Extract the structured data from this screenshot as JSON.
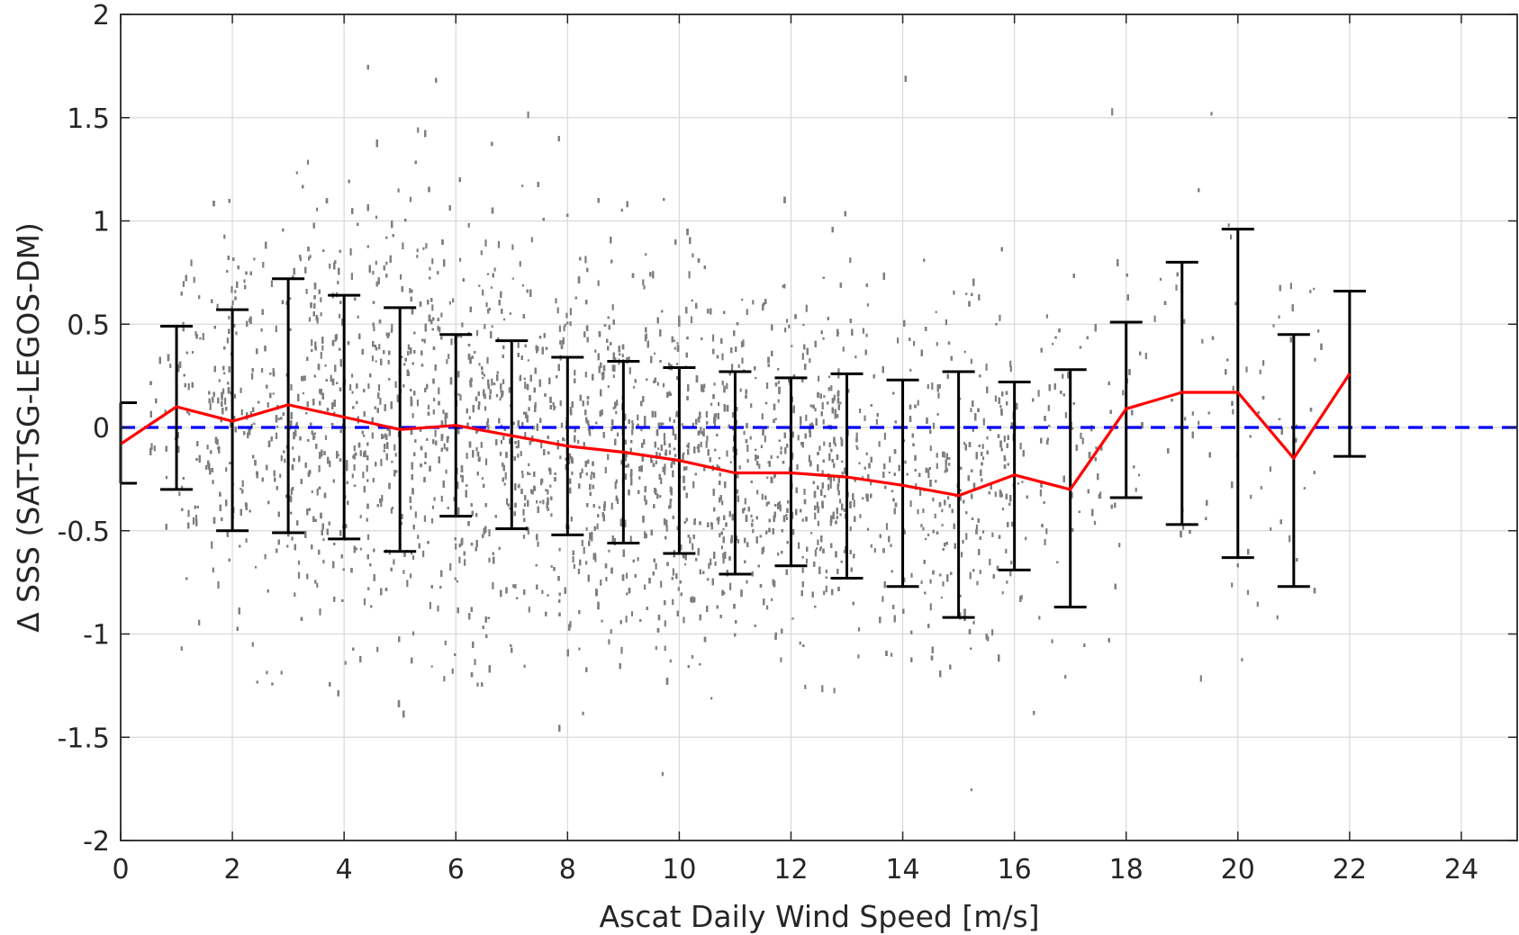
{
  "chart_data": {
    "type": "scatter",
    "title": "",
    "xlabel": "Ascat Daily Wind Speed [m/s]",
    "ylabel": "Δ SSS (SAT-TSG-LEGOS-DM)",
    "xlim": [
      0,
      25
    ],
    "ylim": [
      -2,
      2
    ],
    "xticks": [
      0,
      2,
      4,
      6,
      8,
      10,
      12,
      14,
      16,
      18,
      20,
      22,
      24
    ],
    "yticks": [
      -2,
      -1.5,
      -1,
      -0.5,
      0,
      0.5,
      1,
      1.5,
      2
    ],
    "xtick_labels": [
      "0",
      "2",
      "4",
      "6",
      "8",
      "10",
      "12",
      "14",
      "16",
      "18",
      "20",
      "22",
      "24"
    ],
    "ytick_labels": [
      "-2",
      "-1.5",
      "-1",
      "-0.5",
      "0",
      "0.5",
      "1",
      "1.5",
      "2"
    ],
    "grid": true,
    "colors": {
      "scatter": "#7f7f7f",
      "mean_line": "#ff0000",
      "reference_line": "#0000ff",
      "error_bars": "#000000",
      "grid": "#d9d9d9",
      "axes": "#262626"
    },
    "reference_line": {
      "y": 0,
      "style": "dashed"
    },
    "scatter_cloud": {
      "note_x_range": [
        0,
        21.5
      ],
      "center_by_wind": [
        [
          0.5,
          0.05,
          0.35
        ],
        [
          2,
          0.05,
          0.5
        ],
        [
          4,
          0.05,
          0.55
        ],
        [
          6,
          0.0,
          0.5
        ],
        [
          8,
          -0.1,
          0.45
        ],
        [
          10,
          -0.15,
          0.45
        ],
        [
          12,
          -0.2,
          0.4
        ],
        [
          14,
          -0.25,
          0.4
        ],
        [
          16,
          -0.25,
          0.4
        ],
        [
          18,
          0.05,
          0.5
        ],
        [
          20,
          0.1,
          0.6
        ],
        [
          21.5,
          -0.1,
          0.5
        ]
      ]
    },
    "series": [
      {
        "name": "bin mean",
        "x": [
          0,
          1,
          2,
          3,
          4,
          5,
          6,
          7,
          8,
          9,
          10,
          11,
          12,
          13,
          14,
          15,
          16,
          17,
          18,
          19,
          20,
          21,
          22
        ],
        "y": [
          -0.08,
          0.1,
          0.03,
          0.11,
          0.05,
          -0.01,
          0.01,
          -0.04,
          -0.09,
          -0.12,
          -0.16,
          -0.22,
          -0.22,
          -0.24,
          -0.28,
          -0.33,
          -0.23,
          -0.3,
          0.09,
          0.17,
          0.17,
          -0.15,
          0.26
        ]
      },
      {
        "name": "error bars",
        "x": [
          0,
          1,
          2,
          3,
          4,
          5,
          6,
          7,
          8,
          9,
          10,
          11,
          12,
          13,
          14,
          15,
          16,
          17,
          18,
          19,
          20,
          21,
          22
        ],
        "upper": [
          0.12,
          0.49,
          0.57,
          0.72,
          0.64,
          0.58,
          0.45,
          0.42,
          0.34,
          0.32,
          0.29,
          0.27,
          0.24,
          0.26,
          0.23,
          0.27,
          0.22,
          0.28,
          0.51,
          0.8,
          0.96,
          0.45,
          0.66
        ],
        "lower": [
          -0.27,
          -0.3,
          -0.5,
          -0.51,
          -0.54,
          -0.6,
          -0.43,
          -0.49,
          -0.52,
          -0.56,
          -0.61,
          -0.71,
          -0.67,
          -0.73,
          -0.77,
          -0.92,
          -0.69,
          -0.87,
          -0.34,
          -0.47,
          -0.63,
          -0.77,
          -0.14
        ]
      }
    ]
  }
}
